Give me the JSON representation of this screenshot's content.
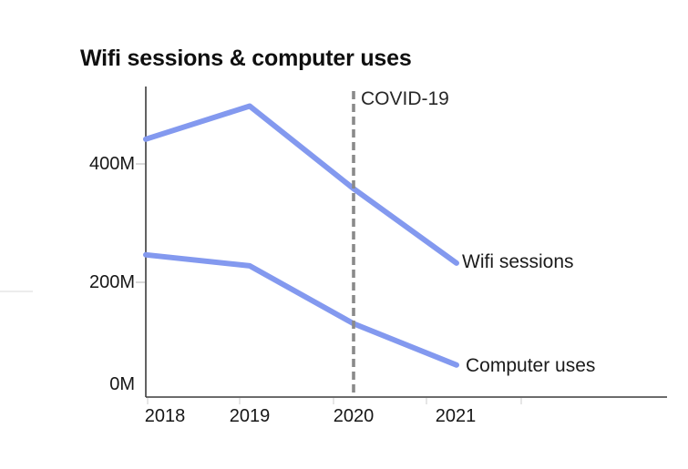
{
  "page": {
    "background_color": "#ffffff"
  },
  "chart_data": {
    "type": "line",
    "title": "Wifi sessions & computer uses",
    "categories": [
      "2018",
      "2019",
      "2020",
      "2021"
    ],
    "unit": "M",
    "series": [
      {
        "name": "Wifi sessions",
        "values": [
          445,
          505,
          355,
          220
        ]
      },
      {
        "name": "Computer uses",
        "values": [
          235,
          215,
          110,
          35
        ]
      }
    ],
    "y_ticks": [
      {
        "label": "400M",
        "value": 400
      },
      {
        "label": "200M",
        "value": 200
      },
      {
        "label": "0M",
        "value": 0
      }
    ],
    "ylim": [
      0,
      540
    ],
    "xlabel": "",
    "ylabel": "",
    "grid": false,
    "legend_position": "inline-line-end-labels",
    "line_color": "#8399EF",
    "axis_color": "#3b3b3b",
    "annotation": {
      "label": "COVID-19",
      "at_category": "2020",
      "style": "dashed-vertical-line",
      "color": "#8a8a8a"
    }
  }
}
